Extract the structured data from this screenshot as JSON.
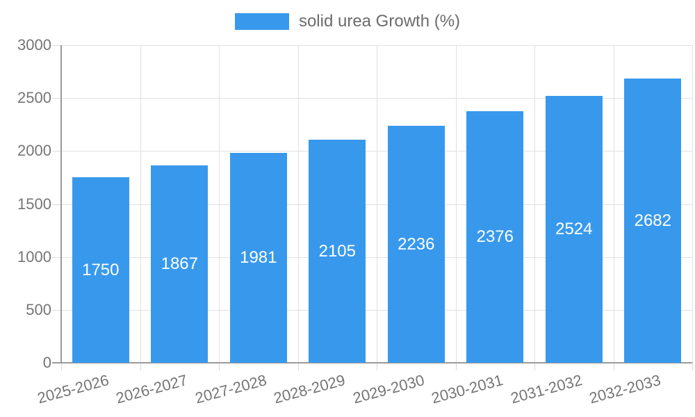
{
  "chart_data": {
    "type": "bar",
    "title": "",
    "legend": "solid urea Growth (%)",
    "legend_position": "top-center",
    "categories": [
      "2025-2026",
      "2026-2027",
      "2027-2028",
      "2028-2029",
      "2029-2030",
      "2030-2031",
      "2031-2032",
      "2032-2033"
    ],
    "series": [
      {
        "name": "solid urea Growth (%)",
        "values": [
          1750,
          1867,
          1981,
          2105,
          2236,
          2376,
          2524,
          2682
        ]
      }
    ],
    "xlabel": "",
    "ylabel": "",
    "ylim": [
      0,
      3000
    ],
    "yticks": [
      0,
      500,
      1000,
      1500,
      2000,
      2500,
      3000
    ],
    "grid": true,
    "x_tick_rotation_deg": -15,
    "value_label_position": "inside-center"
  },
  "style": {
    "bar_color": "#3899EC",
    "grid_color": "#E0E0E0",
    "tick_color": "#D9D9D9",
    "axis_line_color": "#9A9A9A",
    "axis_text_color": "#757575",
    "legend_text_color": "#6B6B6B",
    "value_text_color": "#FFFFFF",
    "background": "#FFFFFF"
  }
}
